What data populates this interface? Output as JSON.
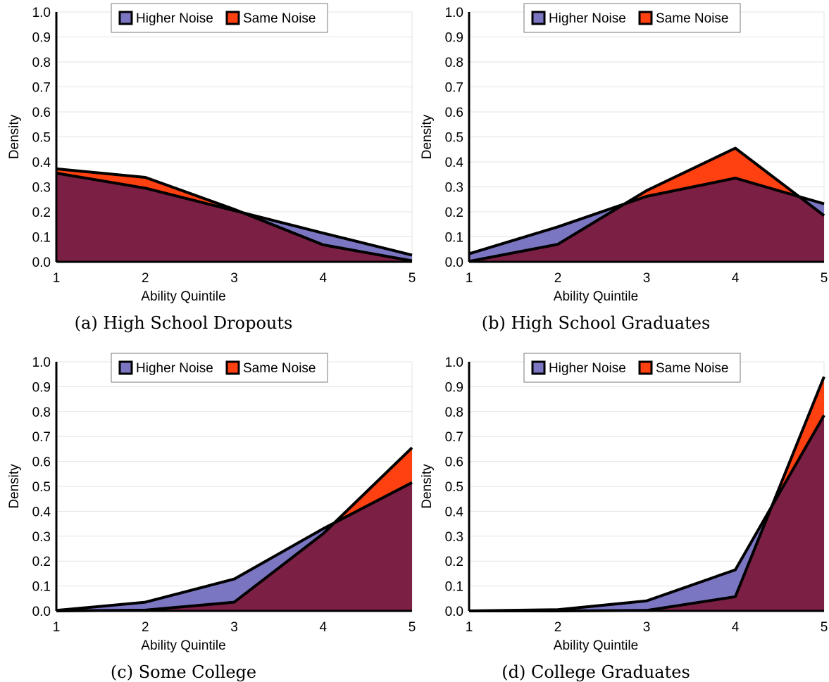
{
  "colors": {
    "higher_noise": "#7b76c2",
    "same_noise": "#ff4010",
    "overlap": "#7c1f45",
    "stroke": "#000000",
    "grid": "#e3e3e3"
  },
  "chart_data": [
    {
      "type": "area",
      "caption": "(a) High School Dropouts",
      "xlabel": "Ability Quintile",
      "ylabel": "Density",
      "x": [
        1,
        2,
        3,
        4,
        5
      ],
      "x_ticks": [
        "1",
        "2",
        "3",
        "4",
        "5"
      ],
      "y_ticks": [
        "0.0",
        "0.1",
        "0.2",
        "0.3",
        "0.4",
        "0.5",
        "0.6",
        "0.7",
        "0.8",
        "0.9",
        "1.0"
      ],
      "ylim": [
        0,
        1
      ],
      "grid": true,
      "legend_position": "top-center",
      "series": [
        {
          "name": "Higher Noise",
          "values": [
            0.355,
            0.295,
            0.205,
            0.115,
            0.027
          ]
        },
        {
          "name": "Same Noise",
          "values": [
            0.372,
            0.338,
            0.21,
            0.068,
            0.004
          ]
        }
      ]
    },
    {
      "type": "area",
      "caption": "(b) High School Graduates",
      "xlabel": "Ability Quintile",
      "ylabel": "Density",
      "x": [
        1,
        2,
        3,
        4,
        5
      ],
      "x_ticks": [
        "1",
        "2",
        "3",
        "4",
        "5"
      ],
      "y_ticks": [
        "0.0",
        "0.1",
        "0.2",
        "0.3",
        "0.4",
        "0.5",
        "0.6",
        "0.7",
        "0.8",
        "0.9",
        "1.0"
      ],
      "ylim": [
        0,
        1
      ],
      "grid": true,
      "legend_position": "top-center",
      "series": [
        {
          "name": "Higher Noise",
          "values": [
            0.032,
            0.14,
            0.262,
            0.335,
            0.232
          ]
        },
        {
          "name": "Same Noise",
          "values": [
            0.002,
            0.07,
            0.285,
            0.455,
            0.185
          ]
        }
      ]
    },
    {
      "type": "area",
      "caption": "(c) Some College",
      "xlabel": "Ability Quintile",
      "ylabel": "Density",
      "x": [
        1,
        2,
        3,
        4,
        5
      ],
      "x_ticks": [
        "1",
        "2",
        "3",
        "4",
        "5"
      ],
      "y_ticks": [
        "0.0",
        "0.1",
        "0.2",
        "0.3",
        "0.4",
        "0.5",
        "0.6",
        "0.7",
        "0.8",
        "0.9",
        "1.0"
      ],
      "ylim": [
        0,
        1
      ],
      "grid": true,
      "legend_position": "top-center",
      "series": [
        {
          "name": "Higher Noise",
          "values": [
            0.002,
            0.035,
            0.128,
            0.33,
            0.515
          ]
        },
        {
          "name": "Same Noise",
          "values": [
            0.0,
            0.003,
            0.035,
            0.31,
            0.655
          ]
        }
      ]
    },
    {
      "type": "area",
      "caption": "(d) College Graduates",
      "xlabel": "Ability Quintile",
      "ylabel": "Density",
      "x": [
        1,
        2,
        3,
        4,
        5
      ],
      "x_ticks": [
        "1",
        "2",
        "3",
        "4",
        "5"
      ],
      "y_ticks": [
        "0.0",
        "0.1",
        "0.2",
        "0.3",
        "0.4",
        "0.5",
        "0.6",
        "0.7",
        "0.8",
        "0.9",
        "1.0"
      ],
      "ylim": [
        0,
        1
      ],
      "grid": true,
      "legend_position": "top-center",
      "series": [
        {
          "name": "Higher Noise",
          "values": [
            0.0,
            0.005,
            0.04,
            0.165,
            0.785
          ]
        },
        {
          "name": "Same Noise",
          "values": [
            0.0,
            0.0,
            0.002,
            0.057,
            0.94
          ]
        }
      ]
    }
  ]
}
